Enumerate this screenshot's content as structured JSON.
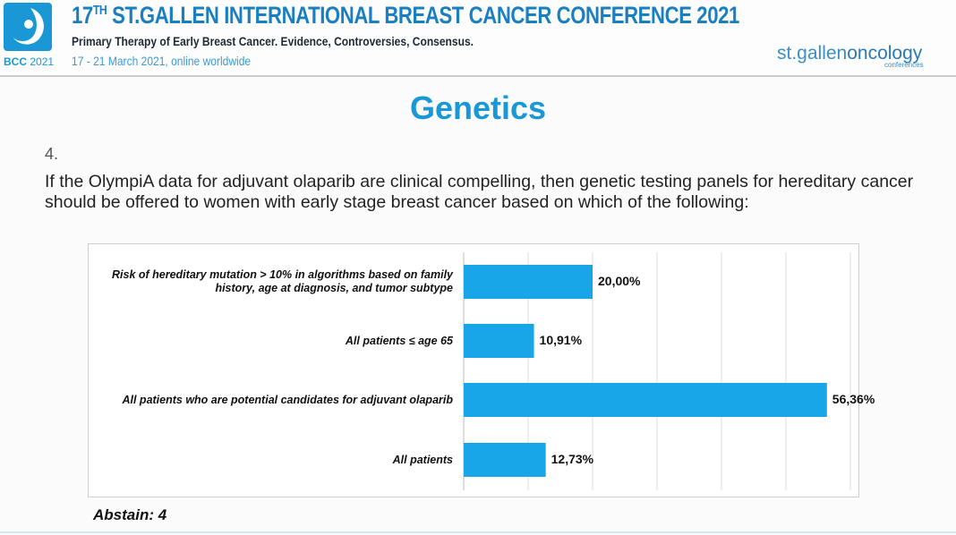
{
  "header": {
    "logo_label": "BCC",
    "logo_year": "2021",
    "conf_title_pre": "17",
    "conf_title_sup": "TH",
    "conf_title_post": " ST.GALLEN INTERNATIONAL BREAST CANCER CONFERENCE 2021",
    "subtitle": "Primary Therapy of Early Breast Cancer. Evidence, Controversies, Consensus.",
    "dates": "17 - 21 March 2021, online worldwide",
    "brand_a": "st.gallen",
    "brand_b": "oncology",
    "brand_small": "conferences"
  },
  "slide": {
    "title": "Genetics",
    "question_number": "4.",
    "question": "If the OlympiA data for adjuvant olaparib are clinical compelling, then genetic testing panels for hereditary cancer should be offered to women with early stage breast cancer based on which of the following:",
    "abstain": "Abstain: 4"
  },
  "colors": {
    "accent": "#1a98d5",
    "bar": "#19a6e8"
  },
  "chart_data": {
    "type": "bar",
    "orientation": "horizontal",
    "categories": [
      "Risk of hereditary mutation > 10% in algorithms based on family history, age at diagnosis, and tumor subtype",
      "All patients ≤ age 65",
      "All patients who are potential candidates for adjuvant olaparib",
      "All patients"
    ],
    "values": [
      20.0,
      10.91,
      56.36,
      12.73
    ],
    "value_labels": [
      "20,00%",
      "10,91%",
      "56,36%",
      "12,73%"
    ],
    "xlim": [
      0,
      60
    ],
    "grid": true,
    "legend": "none"
  }
}
